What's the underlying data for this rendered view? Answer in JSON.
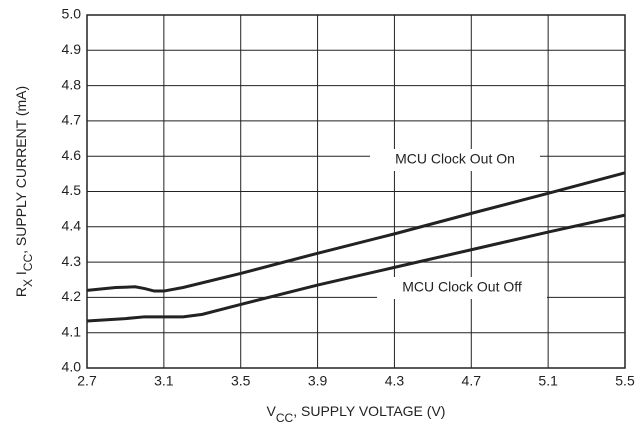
{
  "chart_data": {
    "type": "line",
    "x_label": [
      "V",
      "CC",
      ", SUPPLY VOLTAGE (V)"
    ],
    "y_label": [
      "R",
      "X",
      " I",
      "CC",
      ", SUPPLY CURRENT (mA)"
    ],
    "xlim": [
      2.7,
      5.5
    ],
    "xticks": [
      2.7,
      3.1,
      3.5,
      3.9,
      4.3,
      4.7,
      5.1,
      5.5
    ],
    "ylim": [
      4.0,
      5.0
    ],
    "yticks": [
      {
        "value": 4.0,
        "label": "4.0"
      },
      4.1,
      4.2,
      4.3,
      4.4,
      4.5,
      4.6,
      4.7,
      4.8,
      4.9,
      {
        "value": 5.0,
        "label": "5.0"
      }
    ],
    "grid": true,
    "series": [
      {
        "name": "MCU Clock Out On",
        "color": "#222222",
        "x": [
          2.7,
          2.85,
          2.95,
          3.0,
          3.05,
          3.1,
          3.2,
          3.5,
          3.9,
          4.3,
          4.7,
          5.1,
          5.5
        ],
        "values": [
          4.22,
          4.228,
          4.23,
          4.225,
          4.218,
          4.218,
          4.228,
          4.268,
          4.325,
          4.38,
          4.438,
          4.495,
          4.553
        ]
      },
      {
        "name": "MCU Clock Out Off",
        "color": "#222222",
        "x": [
          2.7,
          2.9,
          3.0,
          3.1,
          3.2,
          3.3,
          3.5,
          3.9,
          4.3,
          4.7,
          5.1,
          5.5
        ],
        "values": [
          4.133,
          4.14,
          4.145,
          4.145,
          4.145,
          4.152,
          4.18,
          4.235,
          4.285,
          4.335,
          4.385,
          4.433
        ]
      }
    ]
  }
}
